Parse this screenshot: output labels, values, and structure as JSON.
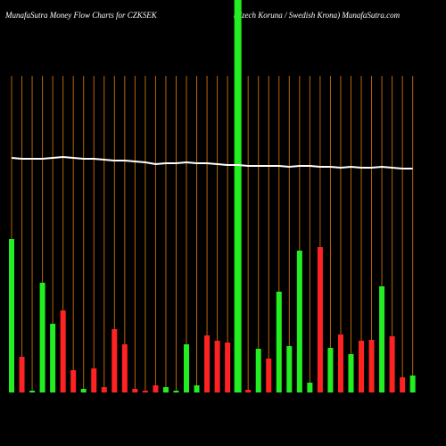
{
  "chart_data": {
    "type": "bar",
    "title": "MunafaSutra  Money Flow  Charts for CZKSEK",
    "subtitle": "(Czech Koruna  / Swedish Krona) MunafaSutra.com",
    "categories": [
      null,
      null,
      null,
      null,
      null,
      null,
      null,
      null,
      null,
      null,
      null,
      null,
      null,
      null,
      null,
      null,
      null,
      null,
      null,
      null,
      null,
      null,
      null,
      null,
      null,
      null,
      null,
      null,
      null,
      null,
      null,
      null,
      null,
      null,
      null,
      null,
      null,
      null,
      null,
      null
    ],
    "values": [
      172,
      40,
      2,
      123,
      77,
      92,
      25,
      4,
      27,
      6,
      71,
      54,
      4,
      2,
      8,
      6,
      2,
      54,
      8,
      64,
      58,
      56,
      440,
      3,
      49,
      38,
      113,
      52,
      159,
      11,
      163,
      50,
      65,
      43,
      58,
      59,
      119,
      63,
      17,
      19
    ],
    "colors": [
      "#22ee22",
      "#ff2222",
      "#22ee22",
      "#22ee22",
      "#22ee22",
      "#ff2222",
      "#ff2222",
      "#22ee22",
      "#ff2222",
      "#ff2222",
      "#ff2222",
      "#ff2222",
      "#ff2222",
      "#ff2222",
      "#ff2222",
      "#22ee22",
      "#22ee22",
      "#22ee22",
      "#22ee22",
      "#ff2222",
      "#ff2222",
      "#ff2222",
      "#22ee22",
      "#ff2222",
      "#22ee22",
      "#ff2222",
      "#22ee22",
      "#22ee22",
      "#22ee22",
      "#22ee22",
      "#ff2222",
      "#22ee22",
      "#ff2222",
      "#22ee22",
      "#ff2222",
      "#ff2222",
      "#22ee22",
      "#ff2222",
      "#ff2222",
      "#22ee22"
    ],
    "line_values": [
      263,
      262,
      262,
      262,
      263,
      264,
      263,
      262,
      262,
      261,
      260,
      260,
      259,
      258,
      256,
      257,
      257,
      258,
      257,
      257,
      256,
      255,
      255,
      254,
      254,
      254,
      254,
      253,
      254,
      254,
      253,
      253,
      252,
      253,
      252,
      252,
      253,
      252,
      251,
      251
    ],
    "line_color": "#ffffff",
    "grid_color": "#b8650a",
    "ylim": [
      0,
      440
    ]
  }
}
